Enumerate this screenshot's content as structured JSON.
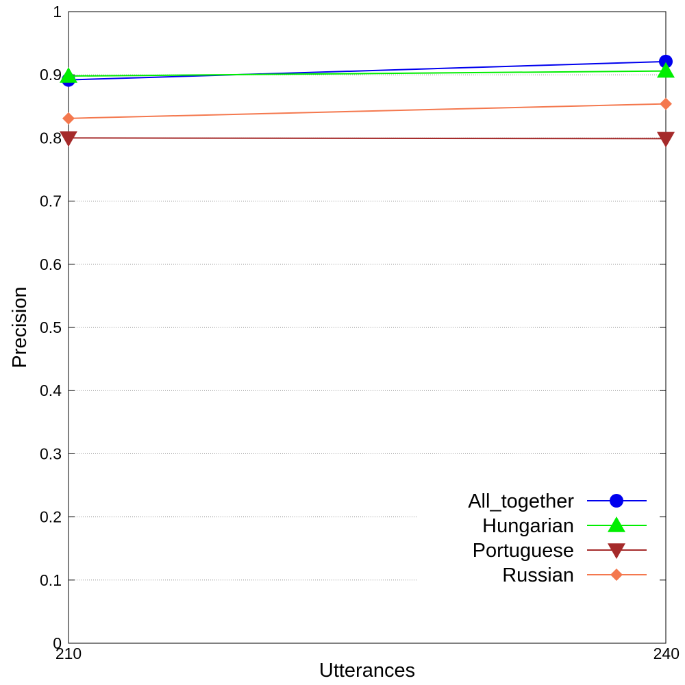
{
  "chart_data": {
    "type": "line",
    "title": "",
    "xlabel": "Utterances",
    "ylabel": "Precision",
    "x": [
      210,
      240
    ],
    "xlim": [
      210,
      240
    ],
    "ylim": [
      0,
      1
    ],
    "xticks": [
      "210",
      "240"
    ],
    "yticks": [
      "0",
      "0.1",
      "0.2",
      "0.3",
      "0.4",
      "0.5",
      "0.6",
      "0.7",
      "0.8",
      "0.9",
      "1"
    ],
    "grid": "horizontal dotted",
    "legend_position": "bottom-right",
    "series": [
      {
        "name": "All_together",
        "values": [
          0.892,
          0.921
        ],
        "color": "#0000ee",
        "marker": "circle"
      },
      {
        "name": "Hungarian",
        "values": [
          0.898,
          0.906
        ],
        "color": "#00ee00",
        "marker": "triangle-up"
      },
      {
        "name": "Portuguese",
        "values": [
          0.8,
          0.799
        ],
        "color": "#a52a2a",
        "marker": "triangle-down"
      },
      {
        "name": "Russian",
        "values": [
          0.831,
          0.854
        ],
        "color": "#f4784e",
        "marker": "diamond"
      }
    ]
  }
}
